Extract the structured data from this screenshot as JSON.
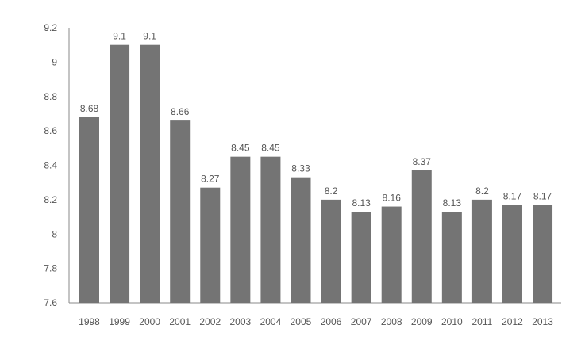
{
  "chart_data": {
    "type": "bar",
    "title": "",
    "xlabel": "",
    "ylabel": "",
    "categories": [
      "1998",
      "1999",
      "2000",
      "2001",
      "2002",
      "2003",
      "2004",
      "2005",
      "2006",
      "2007",
      "2008",
      "2009",
      "2010",
      "2011",
      "2012",
      "2013"
    ],
    "values": [
      8.68,
      9.1,
      9.1,
      8.66,
      8.27,
      8.45,
      8.45,
      8.33,
      8.2,
      8.13,
      8.16,
      8.37,
      8.13,
      8.2,
      8.17,
      8.17
    ],
    "value_labels": [
      "8.68",
      "9.1",
      "9.1",
      "8.66",
      "8.27",
      "8.45",
      "8.45",
      "8.33",
      "8.2",
      "8.13",
      "8.16",
      "8.37",
      "8.13",
      "8.2",
      "8.17",
      "8.17"
    ],
    "ylim": [
      7.6,
      9.2
    ],
    "yticks": [
      "7.6",
      "7.8",
      "8",
      "8.2",
      "8.4",
      "8.6",
      "8.8",
      "9",
      "9.2"
    ],
    "grid": false,
    "legend": "none",
    "colors": {
      "bar": "#747474",
      "axis": "#8a8a8a",
      "text": "#555555"
    }
  }
}
